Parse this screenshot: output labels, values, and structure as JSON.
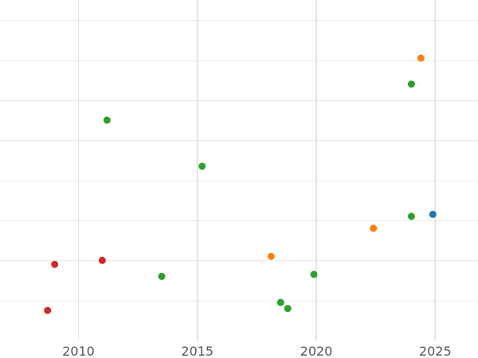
{
  "chart_data": {
    "type": "scatter",
    "title": "",
    "xlabel": "",
    "ylabel": "",
    "xlim": [
      2006.7,
      2026.8
    ],
    "ylim": [
      0,
      8.5
    ],
    "grid": true,
    "x_ticks": [
      {
        "value": 2010,
        "label": "2010"
      },
      {
        "value": 2015,
        "label": "2015"
      },
      {
        "value": 2020,
        "label": "2020"
      },
      {
        "value": 2025,
        "label": "2025"
      }
    ],
    "y_gridlines": [
      1,
      2,
      3,
      4,
      5,
      6,
      7,
      8
    ],
    "series": [
      {
        "color": "#d62728",
        "points": [
          {
            "x": 2008.7,
            "y": 0.75
          },
          {
            "x": 2009.0,
            "y": 1.9
          },
          {
            "x": 2011.0,
            "y": 2.0
          }
        ]
      },
      {
        "color": "#2ca02c",
        "points": [
          {
            "x": 2011.2,
            "y": 5.5
          },
          {
            "x": 2013.5,
            "y": 1.6
          },
          {
            "x": 2015.2,
            "y": 4.35
          },
          {
            "x": 2018.5,
            "y": 0.95
          },
          {
            "x": 2018.8,
            "y": 0.8
          },
          {
            "x": 2019.9,
            "y": 1.65
          },
          {
            "x": 2024.0,
            "y": 3.1
          },
          {
            "x": 2024.0,
            "y": 6.4
          }
        ]
      },
      {
        "color": "#ff7f0e",
        "points": [
          {
            "x": 2018.1,
            "y": 2.1
          },
          {
            "x": 2022.4,
            "y": 2.8
          },
          {
            "x": 2024.4,
            "y": 7.05
          }
        ]
      },
      {
        "color": "#1f77b4",
        "points": [
          {
            "x": 2024.9,
            "y": 3.15
          }
        ]
      }
    ]
  }
}
